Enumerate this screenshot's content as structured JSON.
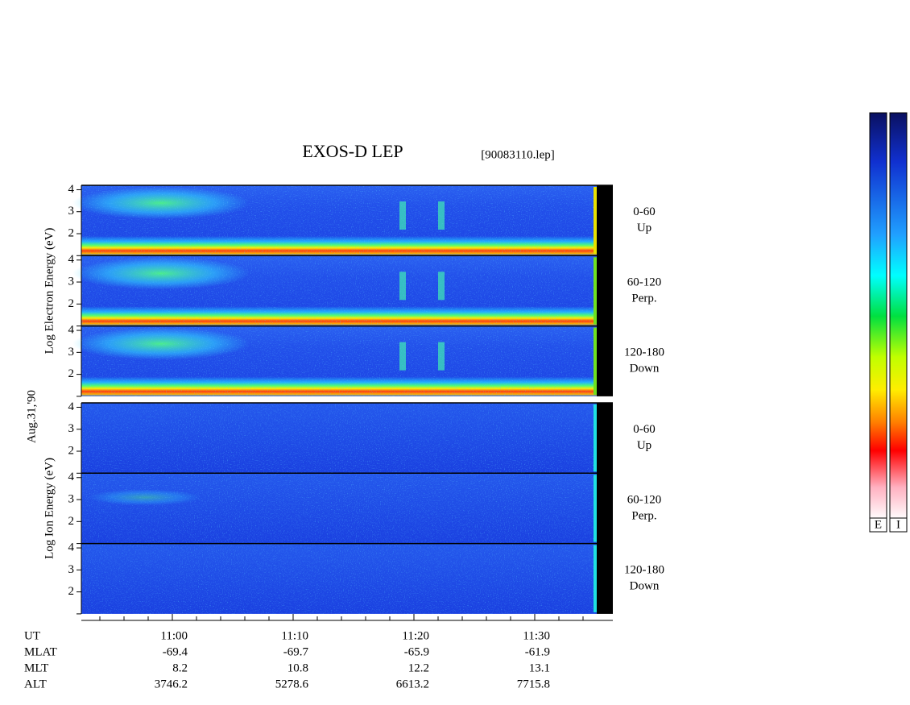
{
  "header": {
    "title": "EXOS-D LEP",
    "file": "[90083110.lep]"
  },
  "date": "Aug.31,'90",
  "ylim": [
    1,
    4.2
  ],
  "yticks": [
    2,
    3,
    4
  ],
  "groups": [
    {
      "axis_label": "Log Electron Energy (eV)",
      "kind": "electron",
      "panels": [
        {
          "angle": "0-60",
          "direction": "Up"
        },
        {
          "angle": "60-120",
          "direction": "Perp."
        },
        {
          "angle": "120-180",
          "direction": "Down"
        }
      ]
    },
    {
      "axis_label": "Log Ion Energy (eV)",
      "kind": "ion",
      "panels": [
        {
          "angle": "0-60",
          "direction": "Up"
        },
        {
          "angle": "60-120",
          "direction": "Perp."
        },
        {
          "angle": "120-180",
          "direction": "Down"
        }
      ]
    }
  ],
  "footer": {
    "labels": [
      "UT",
      "MLAT",
      "MLT",
      "ALT"
    ],
    "ut": [
      "11:00",
      "11:10",
      "11:20",
      "11:30"
    ],
    "mlat": [
      -69.4,
      -69.7,
      -65.9,
      -61.9
    ],
    "mlt": [
      8.2,
      10.8,
      12.2,
      13.1
    ],
    "alt": [
      3746.2,
      5278.6,
      6613.2,
      7715.8
    ]
  },
  "colorbar_labels": [
    "E",
    "I"
  ]
}
